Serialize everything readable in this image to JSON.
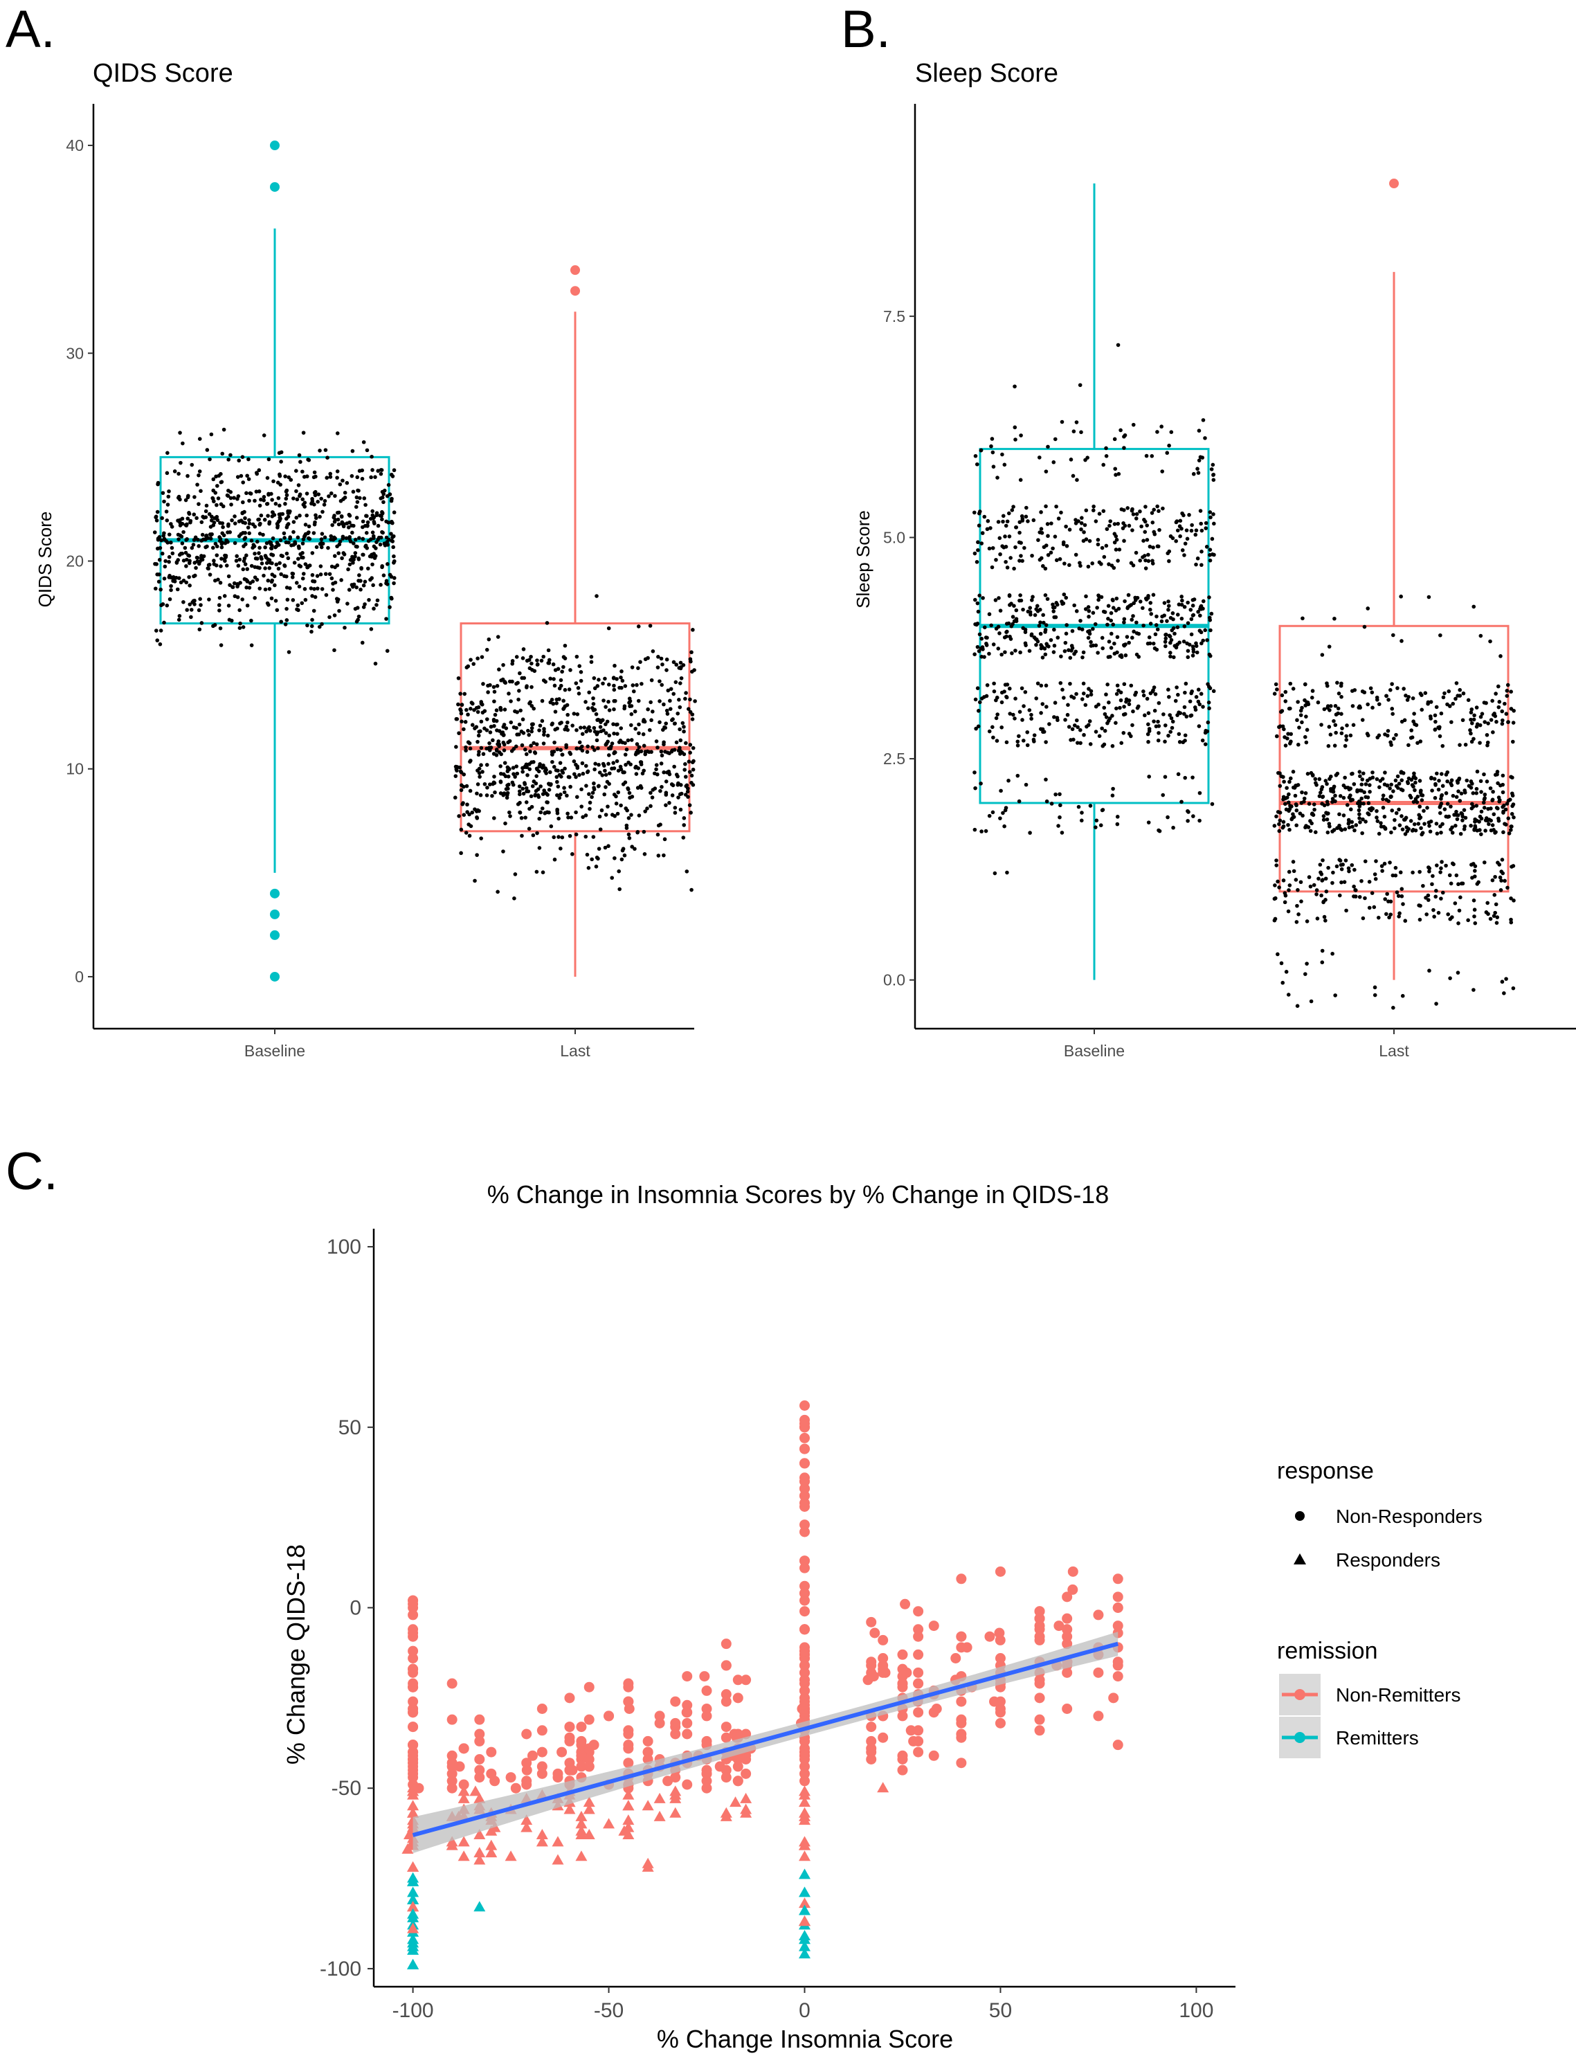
{
  "colors": {
    "baseline": "#00BFC4",
    "last": "#F8766D",
    "fit_line": "#3366FF",
    "ci_band": "#BDBDBD",
    "points": "#000000"
  },
  "panels": {
    "a": {
      "letter": "A."
    },
    "b": {
      "letter": "B."
    },
    "c": {
      "letter": "C."
    }
  },
  "chart_data": [
    {
      "id": "qids",
      "type": "box",
      "title": "QIDS Score",
      "xlabel": "",
      "ylabel": "QIDS Score",
      "categories": [
        "Baseline",
        "Last"
      ],
      "ylim": [
        -2.5,
        42
      ],
      "yticks": [
        0,
        10,
        20,
        30,
        40
      ],
      "boxes": [
        {
          "category": "Baseline",
          "color_key": "baseline",
          "q1": 17,
          "median": 21,
          "q3": 25,
          "whisker_low": 5,
          "whisker_high": 36,
          "outliers": [
            0,
            2,
            3,
            4,
            38,
            40
          ]
        },
        {
          "category": "Last",
          "color_key": "last",
          "q1": 7,
          "median": 11,
          "q3": 17,
          "whisker_low": 0,
          "whisker_high": 32,
          "outliers": [
            33,
            34
          ]
        }
      ],
      "jitter": {
        "n_per_group": 900,
        "spread": 0.42,
        "note": "individual participant scores overlaid as black points"
      }
    },
    {
      "id": "sleep",
      "type": "box",
      "title": "Sleep Score",
      "xlabel": "",
      "ylabel": "Sleep Score",
      "categories": [
        "Baseline",
        "Last"
      ],
      "ylim": [
        -0.55,
        9.9
      ],
      "yticks": [
        0.0,
        2.5,
        5.0,
        7.5
      ],
      "ytick_labels": [
        "0.0",
        "2.5",
        "5.0",
        "7.5"
      ],
      "boxes": [
        {
          "category": "Baseline",
          "color_key": "baseline",
          "q1": 2,
          "median": 4,
          "q3": 6,
          "whisker_low": 0,
          "whisker_high": 9,
          "outliers": []
        },
        {
          "category": "Last",
          "color_key": "last",
          "q1": 1,
          "median": 2,
          "q3": 4,
          "whisker_low": 0,
          "whisker_high": 8,
          "outliers": [
            9
          ]
        }
      ],
      "jitter": {
        "n_per_group": 900,
        "spread": 0.42
      }
    },
    {
      "id": "insomnia_vs_qids",
      "type": "scatter",
      "title": "% Change in Insomnia Scores by % Change in QIDS-18",
      "xlabel": "% Change Insomnia Score",
      "ylabel": "% Change QIDS-18",
      "xlim": [
        -110,
        110
      ],
      "ylim": [
        -105,
        105
      ],
      "xticks": [
        -100,
        -50,
        0,
        50,
        100
      ],
      "yticks": [
        -100,
        -50,
        0,
        50,
        100
      ],
      "regression": {
        "x0": -100,
        "y0": -63,
        "x1": 80,
        "y1": -10,
        "ci_halfwidth_ends": 5,
        "ci_halfwidth_mid": 2
      },
      "legend": {
        "shape_title": "response",
        "shape_items": [
          {
            "label": "Non-Responders",
            "shape": "circle"
          },
          {
            "label": "Responders",
            "shape": "triangle"
          }
        ],
        "color_title": "remission",
        "color_items": [
          {
            "label": "Non-Remitters",
            "color_key": "last"
          },
          {
            "label": "Remitters",
            "color_key": "baseline"
          }
        ]
      },
      "point_rules": {
        "responder_threshold": -50,
        "remitter_description": "mostly at QIDS change -100 to -75"
      }
    }
  ]
}
